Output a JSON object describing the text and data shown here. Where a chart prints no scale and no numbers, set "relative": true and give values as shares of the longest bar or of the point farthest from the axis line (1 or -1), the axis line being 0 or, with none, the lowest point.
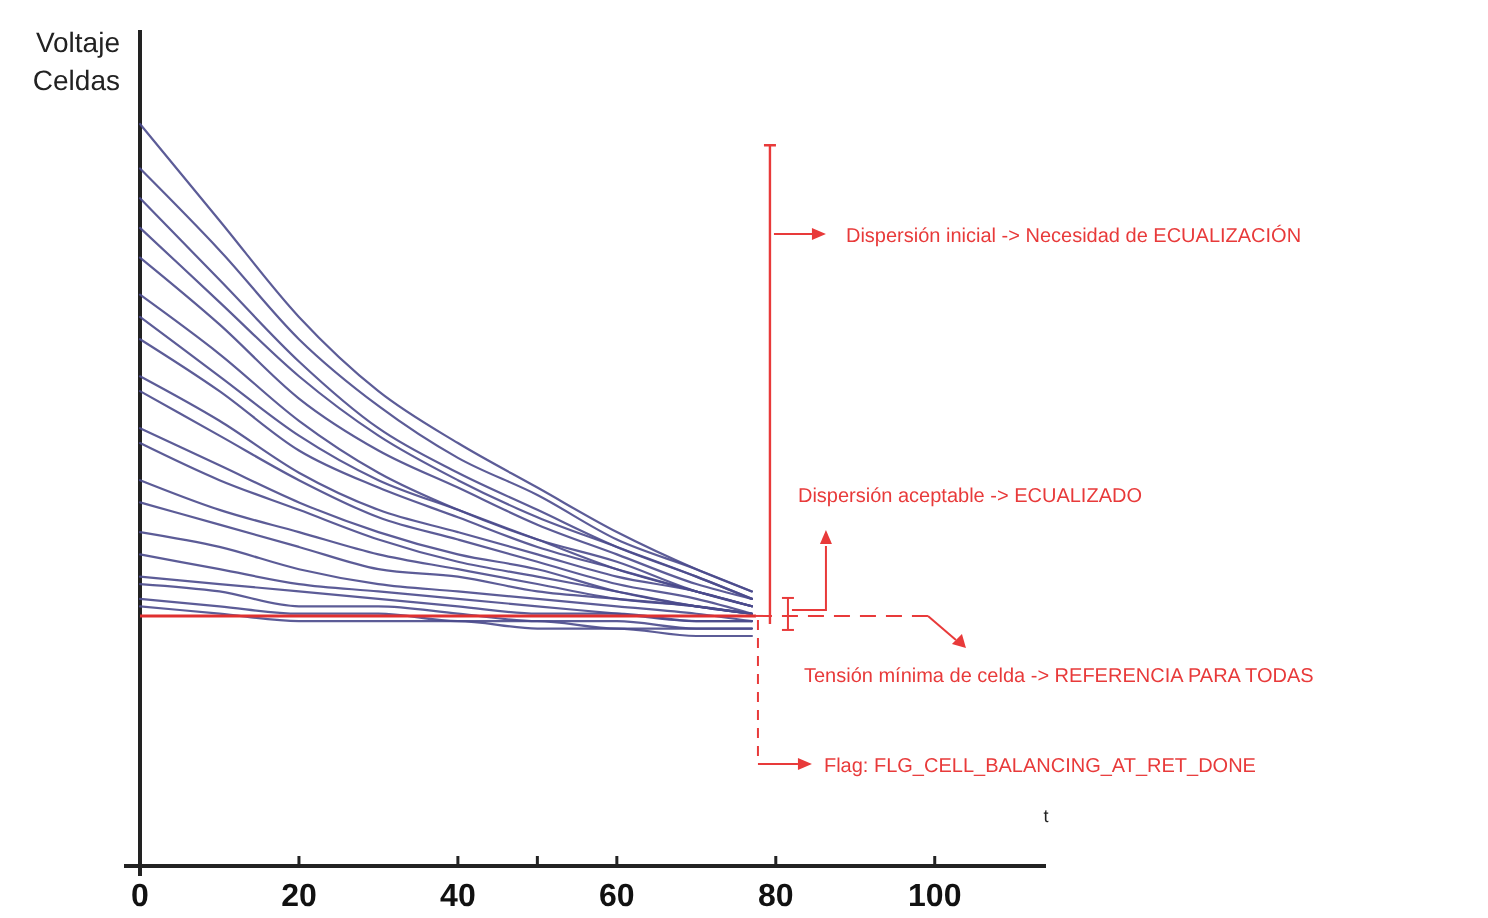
{
  "chart_data": {
    "type": "line",
    "relative": true,
    "xlabel": "t",
    "ylabel": "Voltaje Celdas",
    "x": [
      0,
      10,
      20,
      30,
      40,
      50,
      60,
      70,
      77
    ],
    "xlim": [
      0,
      114
    ],
    "xticks": [
      0,
      20,
      40,
      {
        "value": 50,
        "label": null
      },
      60,
      80,
      100
    ],
    "series": [
      {
        "color": "#4a4a8c",
        "values": [
          1.0,
          0.87,
          0.74,
          0.64,
          0.57,
          0.51,
          0.45,
          0.4,
          0.37
        ]
      },
      {
        "color": "#4a4a8c",
        "values": [
          0.94,
          0.83,
          0.71,
          0.62,
          0.55,
          0.5,
          0.44,
          0.4,
          0.37
        ]
      },
      {
        "color": "#4a4a8c",
        "values": [
          0.9,
          0.79,
          0.68,
          0.59,
          0.53,
          0.48,
          0.43,
          0.39,
          0.36
        ]
      },
      {
        "color": "#4a4a8c",
        "values": [
          0.86,
          0.76,
          0.66,
          0.58,
          0.52,
          0.47,
          0.43,
          0.39,
          0.36
        ]
      },
      {
        "color": "#4a4a8c",
        "values": [
          0.82,
          0.73,
          0.63,
          0.56,
          0.51,
          0.46,
          0.42,
          0.38,
          0.36
        ]
      },
      {
        "color": "#4a4a8c",
        "values": [
          0.77,
          0.69,
          0.6,
          0.53,
          0.48,
          0.44,
          0.41,
          0.37,
          0.35
        ]
      },
      {
        "color": "#4a4a8c",
        "values": [
          0.74,
          0.66,
          0.58,
          0.52,
          0.48,
          0.44,
          0.4,
          0.37,
          0.35
        ]
      },
      {
        "color": "#4a4a8c",
        "values": [
          0.71,
          0.64,
          0.56,
          0.51,
          0.47,
          0.43,
          0.4,
          0.37,
          0.35
        ]
      },
      {
        "color": "#4a4a8c",
        "values": [
          0.66,
          0.6,
          0.53,
          0.48,
          0.45,
          0.42,
          0.39,
          0.37,
          0.35
        ]
      },
      {
        "color": "#4a4a8c",
        "values": [
          0.64,
          0.58,
          0.52,
          0.47,
          0.44,
          0.41,
          0.38,
          0.36,
          0.34
        ]
      },
      {
        "color": "#4a4a8c",
        "values": [
          0.59,
          0.54,
          0.49,
          0.45,
          0.42,
          0.4,
          0.37,
          0.35,
          0.34
        ]
      },
      {
        "color": "#4a4a8c",
        "values": [
          0.57,
          0.52,
          0.48,
          0.44,
          0.41,
          0.39,
          0.37,
          0.35,
          0.34
        ]
      },
      {
        "color": "#4a4a8c",
        "values": [
          0.52,
          0.48,
          0.45,
          0.42,
          0.4,
          0.38,
          0.36,
          0.35,
          0.34
        ]
      },
      {
        "color": "#4a4a8c",
        "values": [
          0.49,
          0.46,
          0.43,
          0.4,
          0.39,
          0.37,
          0.36,
          0.35,
          0.34
        ]
      },
      {
        "color": "#4a4a8c",
        "values": [
          0.45,
          0.43,
          0.4,
          0.38,
          0.37,
          0.36,
          0.35,
          0.34,
          0.33
        ]
      },
      {
        "color": "#4a4a8c",
        "values": [
          0.42,
          0.4,
          0.38,
          0.37,
          0.36,
          0.35,
          0.34,
          0.33,
          0.33
        ]
      },
      {
        "color": "#4a4a8c",
        "values": [
          0.39,
          0.38,
          0.37,
          0.36,
          0.35,
          0.34,
          0.34,
          0.33,
          0.33
        ]
      },
      {
        "color": "#4a4a8c",
        "values": [
          0.38,
          0.37,
          0.35,
          0.35,
          0.34,
          0.33,
          0.33,
          0.32,
          0.32
        ]
      },
      {
        "color": "#4a4a8c",
        "values": [
          0.36,
          0.35,
          0.34,
          0.34,
          0.33,
          0.33,
          0.32,
          0.32,
          0.32
        ]
      },
      {
        "color": "#4a4a8c",
        "values": [
          0.35,
          0.34,
          0.33,
          0.33,
          0.33,
          0.32,
          0.32,
          0.31,
          0.31
        ]
      }
    ],
    "ref_lines": [
      {
        "axis": "y",
        "value": 0.337,
        "color": "#e03030"
      }
    ],
    "annotations": [
      "Dispersión inicial -> Necesidad de ECUALIZACIÓN",
      "Dispersión aceptable -> ECUALIZADO",
      "Tensión mínima de celda -> REFERENCIA PARA TODAS",
      "Flag: FLG_CELL_BALANCING_AT_RET_DONE"
    ]
  }
}
